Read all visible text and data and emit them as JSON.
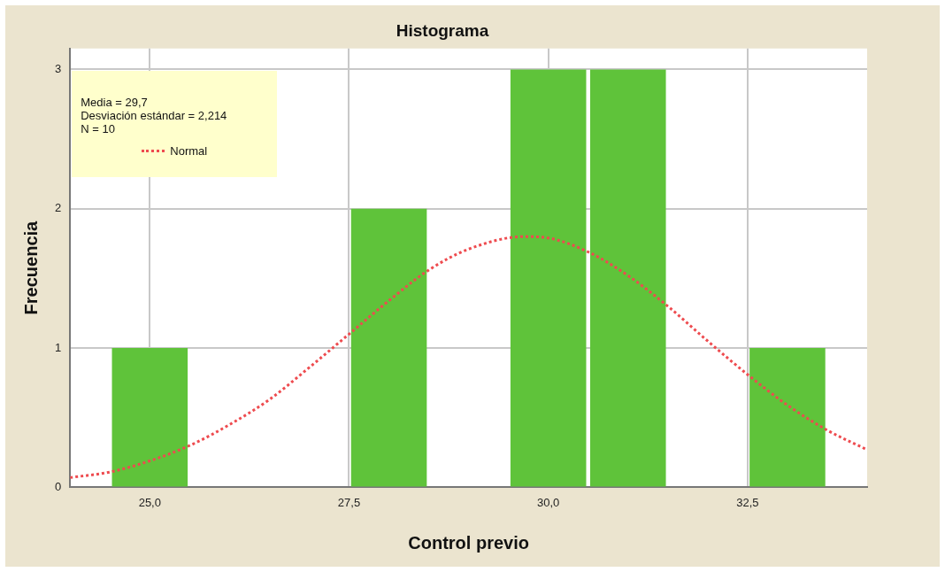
{
  "chart_data": {
    "type": "histogram",
    "title": "Histograma",
    "xlabel": "Control previo",
    "ylabel": "Frecuencia",
    "bins": [
      24.5,
      25.5,
      26.5,
      27.5,
      28.5,
      29.5,
      30.5,
      31.5,
      32.5,
      33.5
    ],
    "values": [
      1,
      0,
      0,
      2,
      0,
      3,
      3,
      0,
      1
    ],
    "color": "#5fc33a",
    "series": [
      {
        "type": "line",
        "name": "Normal",
        "color": "#ee4b4f",
        "line_style": "dotted",
        "marker": "none",
        "x": [
          24,
          24.5,
          25,
          25.5,
          26,
          26.5,
          27,
          27.5,
          28,
          28.5,
          29,
          29.7,
          30,
          30.5,
          31,
          31.5,
          32,
          32.5,
          33,
          33.5,
          34
        ],
        "values": [
          0.07,
          0.11,
          0.19,
          0.3,
          0.45,
          0.63,
          0.86,
          1.1,
          1.34,
          1.56,
          1.71,
          1.8,
          1.79,
          1.69,
          1.52,
          1.3,
          1.05,
          0.81,
          0.59,
          0.41,
          0.27
        ]
      }
    ],
    "annotations": [
      "Media = 29,7",
      "Desviación estándar = 2,214",
      "N = 10"
    ],
    "xlim": [
      24,
      34
    ],
    "xticks": [
      {
        "value": 25,
        "label": "25,0"
      },
      {
        "value": 27.5,
        "label": "27,5"
      },
      {
        "value": 30,
        "label": "30,0"
      },
      {
        "value": 32.5,
        "label": "32,5"
      }
    ],
    "ylim": [
      0,
      3.15
    ],
    "yticks": [
      0,
      1,
      2,
      3
    ],
    "grid": true,
    "legend": "top left"
  }
}
